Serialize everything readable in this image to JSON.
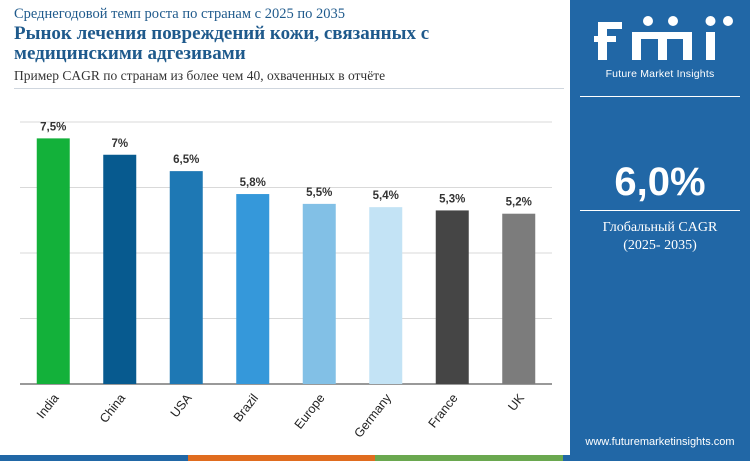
{
  "header": {
    "subtitle": "Среднегодовой темп роста по странам с 2025 по 2035",
    "title": "Рынок лечения повреждений кожи, связанных с медицинскими адгезивами",
    "caption": "Пример CAGR по странам из более чем 40, охваченных в отчёте"
  },
  "chart_data": {
    "type": "bar",
    "categories": [
      "India",
      "China",
      "USA",
      "Brazil",
      "Europe",
      "Germany",
      "France",
      "UK"
    ],
    "values": [
      7.5,
      7,
      6.5,
      5.8,
      5.5,
      5.4,
      5.3,
      5.2
    ],
    "value_labels": [
      "7,5%",
      "7%",
      "6,5%",
      "5,8%",
      "5,5%",
      "5,4%",
      "5,3%",
      "5,2%"
    ],
    "colors": [
      "#13b13a",
      "#075a8f",
      "#1e78b4",
      "#3598da",
      "#82c0e6",
      "#c3e3f5",
      "#454545",
      "#7c7c7c"
    ],
    "ylim": [
      0,
      8
    ],
    "grid": true,
    "yticks_visible": false
  },
  "panel": {
    "logo_text": "fmi",
    "logo_tagline": "Future Market Insights",
    "cagr_value": "6,0%",
    "cagr_label": "Глобальный CAGR",
    "cagr_period": "(2025- 2035)",
    "website": "www.futuremarketinsights.com",
    "background": "#2167a6"
  },
  "footer_colors": [
    "#2167a6",
    "#e06c1f",
    "#6aa84f",
    "#2167a6"
  ]
}
